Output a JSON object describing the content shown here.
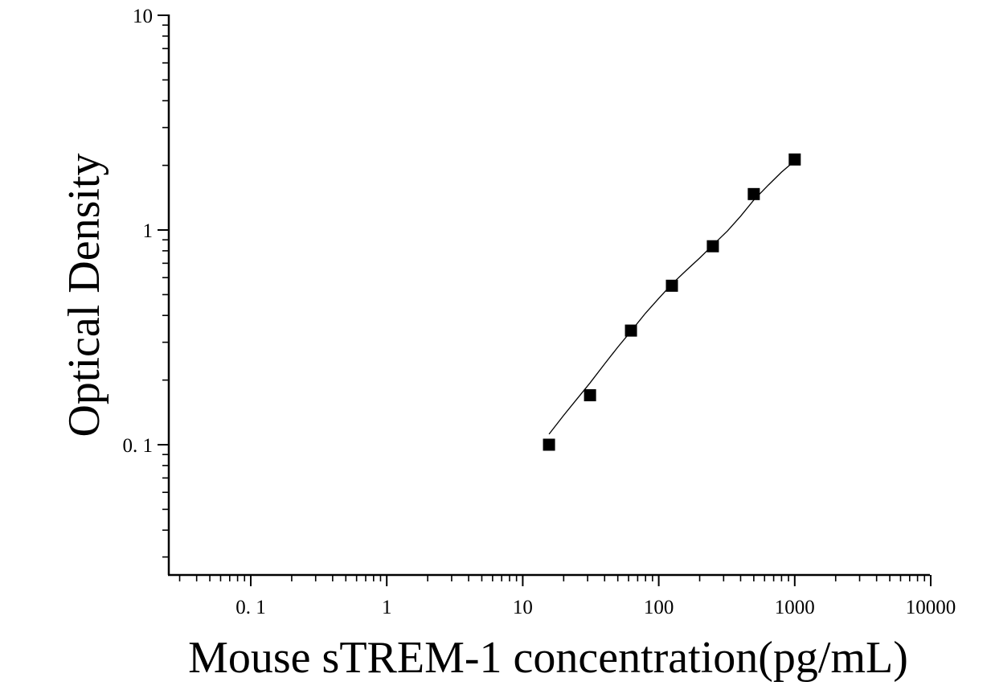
{
  "chart_data": {
    "type": "scatter",
    "title": "",
    "xlabel": "Mouse sTREM-1 concentration(pg/mL)",
    "ylabel": "Optical Density",
    "x_scale": "log",
    "y_scale": "log",
    "xlim": [
      0.025,
      10000
    ],
    "ylim": [
      0.025,
      10
    ],
    "x_ticks": [
      0.1,
      1,
      10,
      100,
      1000,
      10000
    ],
    "x_tick_labels": [
      "0. 1",
      "1",
      "10",
      "100",
      "1000",
      "10000"
    ],
    "y_ticks": [
      0.1,
      1,
      10
    ],
    "y_tick_labels": [
      "0. 1",
      "1",
      "10"
    ],
    "grid": false,
    "legend": "none",
    "marker": "square",
    "marker_color": "#000000",
    "line_color": "#000000",
    "series": [
      {
        "x": [
          15.6,
          31.25,
          62.5,
          125,
          250,
          500,
          1000
        ],
        "y": [
          0.1,
          0.17,
          0.34,
          0.55,
          0.84,
          1.47,
          2.13
        ]
      }
    ],
    "fit_curve": {
      "x": [
        15.6,
        20,
        25,
        31.25,
        40,
        50,
        62.5,
        80,
        100,
        125,
        160,
        200,
        250,
        320,
        400,
        500,
        640,
        800,
        1000
      ],
      "y": [
        0.112,
        0.137,
        0.163,
        0.194,
        0.238,
        0.285,
        0.338,
        0.41,
        0.48,
        0.56,
        0.65,
        0.74,
        0.85,
        0.99,
        1.16,
        1.38,
        1.62,
        1.86,
        2.1
      ]
    }
  }
}
